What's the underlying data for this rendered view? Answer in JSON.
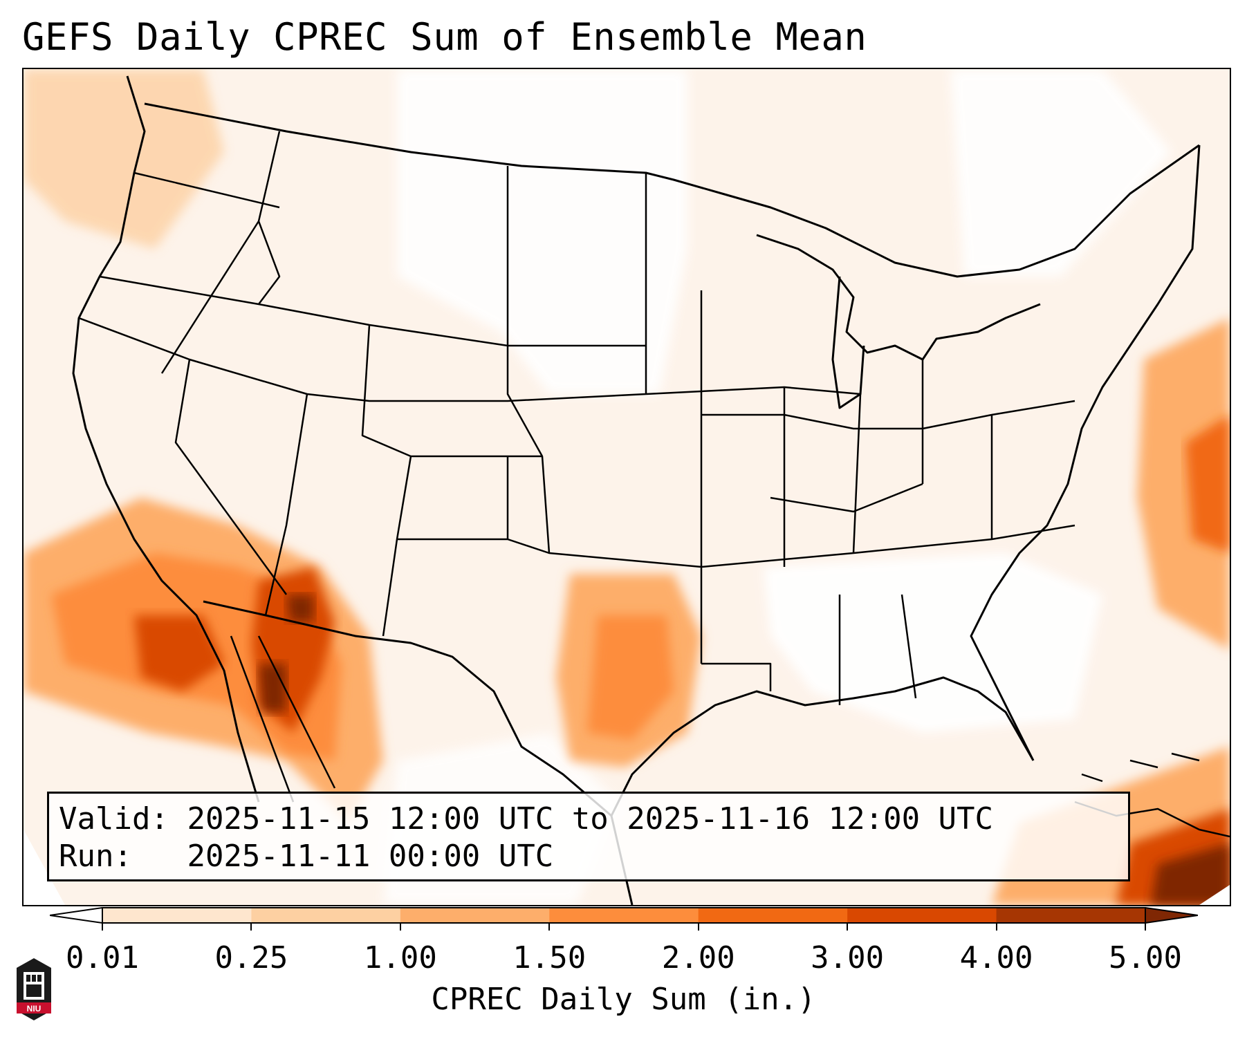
{
  "title": "GEFS Daily CPREC Sum of Ensemble Mean",
  "info_box": {
    "valid_label": "Valid:",
    "valid_value": "2025-11-15 12:00 UTC to 2025-11-16 12:00 UTC",
    "run_label": "Run:",
    "run_value": "2025-11-11 00:00 UTC"
  },
  "colorbar": {
    "title": "CPREC Daily Sum (in.)",
    "levels": [
      "0.01",
      "0.25",
      "1.00",
      "1.50",
      "2.00",
      "3.00",
      "4.00",
      "5.00"
    ],
    "colors": [
      "#fee6ce",
      "#fdd0a2",
      "#fdae6b",
      "#fd8d3c",
      "#f16913",
      "#d94801",
      "#a63603",
      "#7f2704"
    ],
    "under_color": "#ffffff",
    "extend": "both"
  },
  "map": {
    "region": "Contiguous United States",
    "background_color": "#fdf0e4",
    "boundary_color": "#000000",
    "heavy_precip_areas": [
      "Southern California",
      "Arizona",
      "Gulf of California",
      "Oklahoma–Texas",
      "western Atlantic",
      "Cuba / Bahamas"
    ]
  },
  "logo": {
    "text": "NIU",
    "color": "#c8102e"
  }
}
